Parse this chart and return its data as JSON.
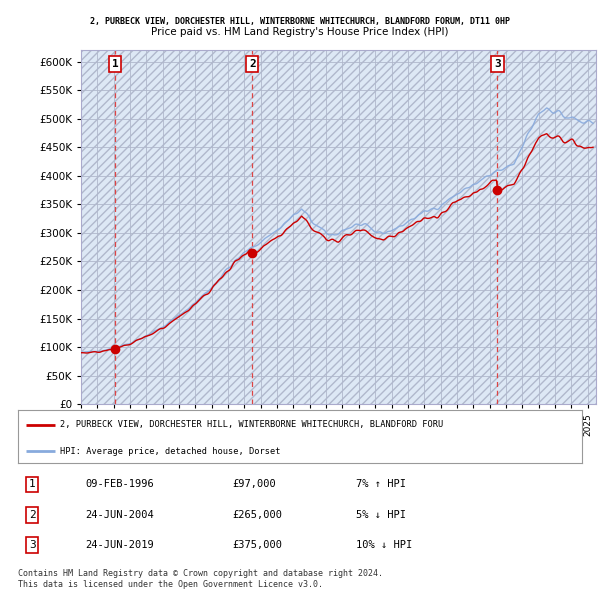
{
  "title_line1": "2, PURBECK VIEW, DORCHESTER HILL, WINTERBORNE WHITECHURCH, BLANDFORD FORUM, DT11 0HP",
  "title_line2": "Price paid vs. HM Land Registry's House Price Index (HPI)",
  "xlim_start": 1994,
  "xlim_end": 2025.5,
  "ylim_min": 0,
  "ylim_max": 620000,
  "yticks": [
    0,
    50000,
    100000,
    150000,
    200000,
    250000,
    300000,
    350000,
    400000,
    450000,
    500000,
    550000,
    600000
  ],
  "ytick_labels": [
    "£0",
    "£50K",
    "£100K",
    "£150K",
    "£200K",
    "£250K",
    "£300K",
    "£350K",
    "£400K",
    "£450K",
    "£500K",
    "£550K",
    "£600K"
  ],
  "sales": [
    {
      "year": 1996.1,
      "price": 97000,
      "label": "1"
    },
    {
      "year": 2004.48,
      "price": 265000,
      "label": "2"
    },
    {
      "year": 2019.48,
      "price": 375000,
      "label": "3"
    }
  ],
  "sale_info": [
    {
      "num": "1",
      "date": "09-FEB-1996",
      "price": "£97,000",
      "hpi": "7% ↑ HPI"
    },
    {
      "num": "2",
      "date": "24-JUN-2004",
      "price": "£265,000",
      "hpi": "5% ↓ HPI"
    },
    {
      "num": "3",
      "date": "24-JUN-2019",
      "price": "£375,000",
      "hpi": "10% ↓ HPI"
    }
  ],
  "legend_line1": "2, PURBECK VIEW, DORCHESTER HILL, WINTERBORNE WHITECHURCH, BLANDFORD FORU",
  "legend_line2": "HPI: Average price, detached house, Dorset",
  "footer": "Contains HM Land Registry data © Crown copyright and database right 2024.\nThis data is licensed under the Open Government Licence v3.0.",
  "property_color": "#cc0000",
  "hpi_color": "#88aadd",
  "sale_vline_color": "#dd4444",
  "chart_bg": "#dde8f5"
}
